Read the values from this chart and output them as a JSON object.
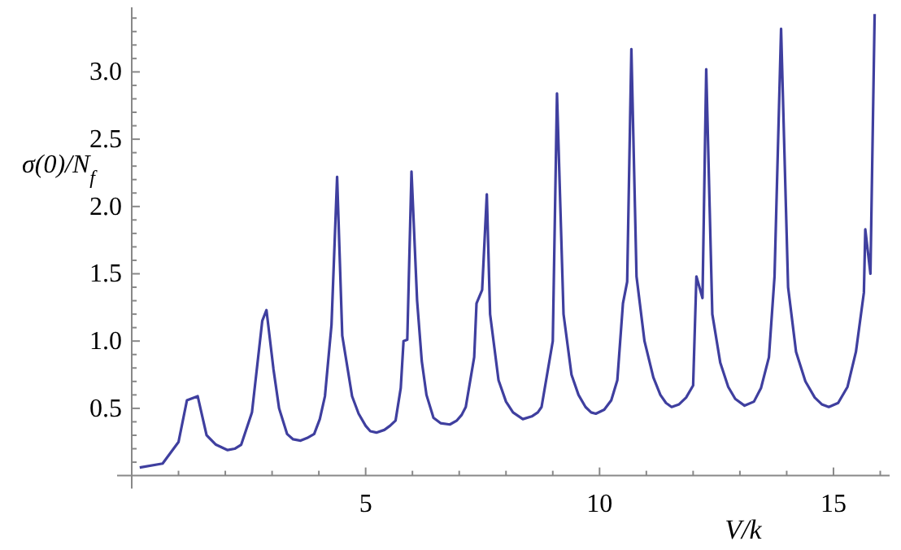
{
  "chart_data": {
    "type": "line",
    "xlabel": "V/k",
    "ylabel": "σ(0)/N$_{f}$",
    "x": [
      0.17,
      0.66,
      1.0,
      1.18,
      1.41,
      1.6,
      1.8,
      2.05,
      2.2,
      2.34,
      2.57,
      2.79,
      2.88,
      3.03,
      3.15,
      3.32,
      3.45,
      3.61,
      3.75,
      3.9,
      4.02,
      4.13,
      4.27,
      4.39,
      4.5,
      4.71,
      4.85,
      5.0,
      5.1,
      5.23,
      5.4,
      5.52,
      5.64,
      5.75,
      5.81,
      5.89,
      5.98,
      6.1,
      6.2,
      6.3,
      6.45,
      6.6,
      6.8,
      6.95,
      7.05,
      7.14,
      7.32,
      7.37,
      7.49,
      7.59,
      7.66,
      7.84,
      8.0,
      8.15,
      8.36,
      8.55,
      8.68,
      8.76,
      9.0,
      9.09,
      9.23,
      9.4,
      9.55,
      9.7,
      9.82,
      9.92,
      10.1,
      10.25,
      10.38,
      10.5,
      10.59,
      10.68,
      10.79,
      10.96,
      11.15,
      11.3,
      11.42,
      11.54,
      11.7,
      11.85,
      12.0,
      12.07,
      12.2,
      12.28,
      12.41,
      12.58,
      12.75,
      12.9,
      13.1,
      13.3,
      13.45,
      13.62,
      13.74,
      13.88,
      14.03,
      14.2,
      14.4,
      14.6,
      14.75,
      14.9,
      15.1,
      15.3,
      15.48,
      15.65,
      15.68,
      15.79,
      15.88
    ],
    "series": [
      {
        "color": "#3f3f9f",
        "values": [
          0.06,
          0.09,
          0.25,
          0.56,
          0.59,
          0.3,
          0.23,
          0.19,
          0.2,
          0.23,
          0.47,
          1.15,
          1.23,
          0.79,
          0.5,
          0.31,
          0.27,
          0.26,
          0.28,
          0.31,
          0.42,
          0.59,
          1.12,
          2.22,
          1.04,
          0.59,
          0.46,
          0.37,
          0.33,
          0.32,
          0.34,
          0.37,
          0.41,
          0.65,
          1.0,
          1.01,
          2.26,
          1.3,
          0.85,
          0.6,
          0.43,
          0.39,
          0.38,
          0.41,
          0.45,
          0.51,
          0.88,
          1.28,
          1.38,
          2.09,
          1.2,
          0.71,
          0.55,
          0.47,
          0.42,
          0.44,
          0.47,
          0.51,
          1.0,
          2.84,
          1.2,
          0.75,
          0.6,
          0.51,
          0.47,
          0.46,
          0.49,
          0.56,
          0.71,
          1.28,
          1.44,
          3.17,
          1.48,
          1.0,
          0.73,
          0.6,
          0.54,
          0.51,
          0.53,
          0.58,
          0.67,
          1.48,
          1.32,
          3.02,
          1.2,
          0.84,
          0.66,
          0.57,
          0.52,
          0.55,
          0.65,
          0.88,
          1.48,
          3.32,
          1.4,
          0.92,
          0.7,
          0.58,
          0.53,
          0.51,
          0.54,
          0.66,
          0.92,
          1.36,
          1.83,
          1.5,
          3.43
        ]
      }
    ],
    "xlim": [
      0,
      16.2
    ],
    "ylim": [
      0,
      3.48
    ],
    "xticks": [
      {
        "value": 1,
        "label": null
      },
      {
        "value": 2,
        "label": null
      },
      {
        "value": 3,
        "label": null
      },
      {
        "value": 4,
        "label": null
      },
      5,
      {
        "value": 6,
        "label": null
      },
      {
        "value": 7,
        "label": null
      },
      {
        "value": 8,
        "label": null
      },
      {
        "value": 9,
        "label": null
      },
      10,
      {
        "value": 11,
        "label": null
      },
      {
        "value": 12,
        "label": null
      },
      {
        "value": 13,
        "label": null
      },
      {
        "value": 14,
        "label": null
      },
      15,
      {
        "value": 16,
        "label": null
      }
    ],
    "yticks": [
      {
        "value": 0.1,
        "label": null
      },
      {
        "value": 0.2,
        "label": null
      },
      {
        "value": 0.3,
        "label": null
      },
      {
        "value": 0.4,
        "label": null
      },
      0.5,
      {
        "value": 0.6,
        "label": null
      },
      {
        "value": 0.7,
        "label": null
      },
      {
        "value": 0.8,
        "label": null
      },
      {
        "value": 0.9,
        "label": null
      },
      {
        "value": 1,
        "label": "1.0"
      },
      {
        "value": 1.1,
        "label": null
      },
      {
        "value": 1.2,
        "label": null
      },
      {
        "value": 1.3,
        "label": null
      },
      {
        "value": 1.4,
        "label": null
      },
      1.5,
      {
        "value": 1.6,
        "label": null
      },
      {
        "value": 1.7,
        "label": null
      },
      {
        "value": 1.8,
        "label": null
      },
      {
        "value": 1.9,
        "label": null
      },
      {
        "value": 2,
        "label": "2.0"
      },
      {
        "value": 2.1,
        "label": null
      },
      {
        "value": 2.2,
        "label": null
      },
      {
        "value": 2.3,
        "label": null
      },
      {
        "value": 2.4,
        "label": null
      },
      2.5,
      {
        "value": 2.6,
        "label": null
      },
      {
        "value": 2.7,
        "label": null
      },
      {
        "value": 2.8,
        "label": null
      },
      {
        "value": 2.9,
        "label": null
      },
      {
        "value": 3,
        "label": "3.0"
      },
      {
        "value": 3.1,
        "label": null
      },
      {
        "value": 3.2,
        "label": null
      },
      {
        "value": 3.3,
        "label": null
      },
      {
        "value": 3.4,
        "label": null
      }
    ],
    "grid": false,
    "marker": "none",
    "line_style": "solid"
  }
}
